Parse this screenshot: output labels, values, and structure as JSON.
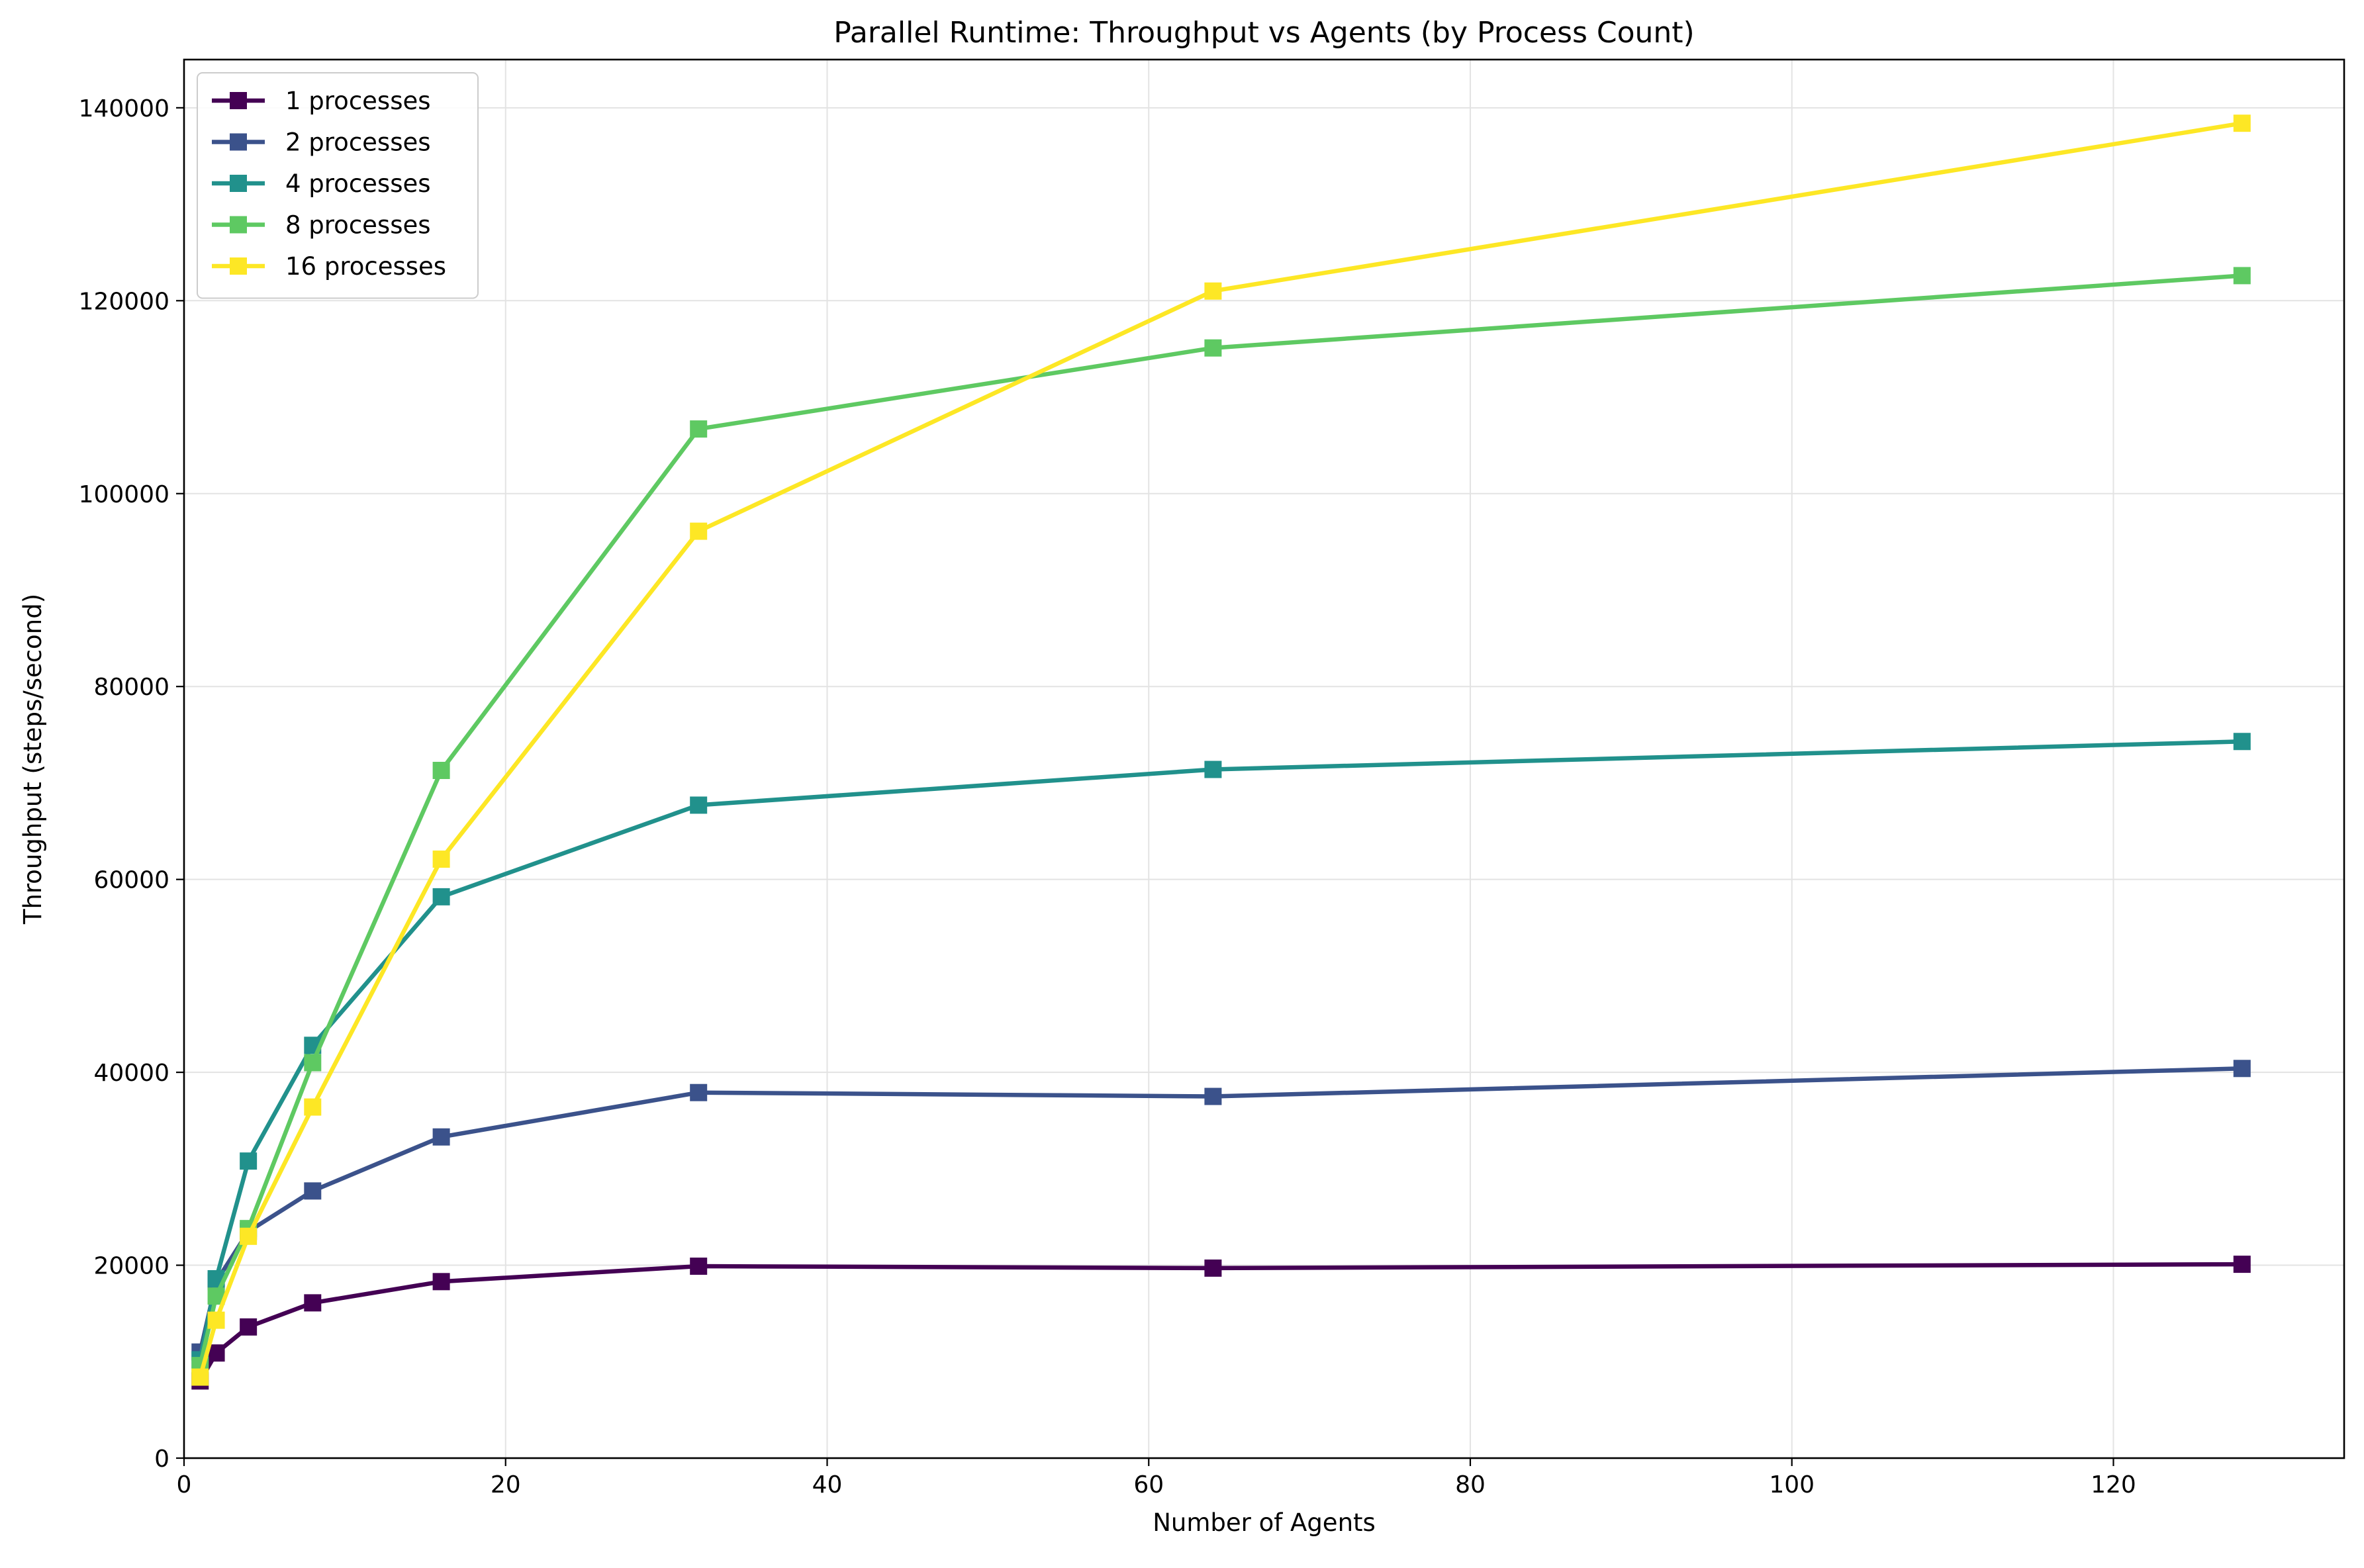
{
  "chart_data": {
    "type": "line",
    "title": "Parallel Runtime: Throughput vs Agents (by Process Count)",
    "xlabel": "Number of Agents",
    "ylabel": "Throughput (steps/second)",
    "x": [
      1,
      2,
      4,
      8,
      16,
      32,
      64,
      128
    ],
    "xlim": [
      0,
      134.35
    ],
    "ylim": [
      0,
      145000
    ],
    "xticks": [
      0,
      20,
      40,
      60,
      80,
      100,
      120
    ],
    "yticks": [
      0,
      20000,
      40000,
      60000,
      80000,
      100000,
      120000,
      140000
    ],
    "grid": true,
    "legend_position": "upper left",
    "marker": "square",
    "series": [
      {
        "name": "1 processes",
        "color": "#440154",
        "values": [
          8000,
          10900,
          13600,
          16100,
          18300,
          19900,
          19700,
          20100
        ]
      },
      {
        "name": "2 processes",
        "color": "#3b528b",
        "values": [
          11000,
          18300,
          23500,
          27700,
          33300,
          37900,
          37500,
          40400
        ]
      },
      {
        "name": "4 processes",
        "color": "#21918c",
        "values": [
          10200,
          18600,
          30800,
          42800,
          58200,
          67700,
          71400,
          74300
        ]
      },
      {
        "name": "8 processes",
        "color": "#5ec962",
        "values": [
          9600,
          16800,
          23800,
          41000,
          71300,
          106700,
          115100,
          122600
        ]
      },
      {
        "name": "16 processes",
        "color": "#fde725",
        "values": [
          8400,
          14300,
          23000,
          36400,
          62100,
          96100,
          121000,
          138400
        ]
      }
    ]
  }
}
